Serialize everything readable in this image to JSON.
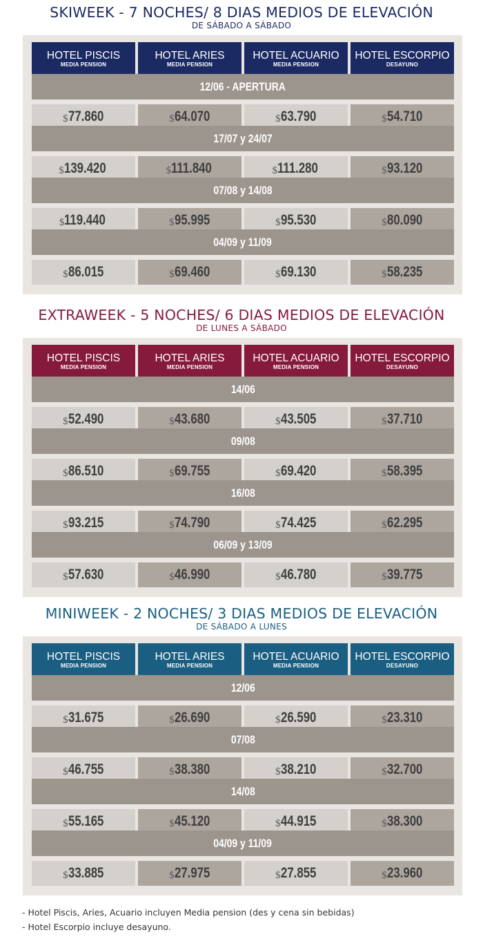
{
  "colors": {
    "skiweek": "#1c2a63",
    "extraweek": "#861a3d",
    "miniweek": "#1a5e82",
    "date_bar": "#9b958d",
    "cell_light": "#d4d0cb",
    "cell_dark": "#aca69f",
    "panel_bg": "#e9e6e2"
  },
  "sections": [
    {
      "id": "skiweek",
      "title": "SKIWEEK - 7 NOCHES/ 8 DIAS MEDIOS DE ELEVACIÓN",
      "subtitle": "DE SÁBADO A SÁBADO",
      "hotels": [
        {
          "name": "HOTEL PISCIS",
          "plan": "MEDIA PENSION"
        },
        {
          "name": "HOTEL ARIES",
          "plan": "MEDIA PENSION"
        },
        {
          "name": "HOTEL ACUARIO",
          "plan": "MEDIA PENSION"
        },
        {
          "name": "HOTEL ESCORPIO",
          "plan": "DESAYUNO"
        }
      ],
      "periods": [
        {
          "date": "12/06 - APERTURA",
          "prices": [
            "77.860",
            "64.070",
            "63.790",
            "54.710"
          ]
        },
        {
          "date": "17/07 y 24/07",
          "prices": [
            "139.420",
            "111.840",
            "111.280",
            "93.120"
          ]
        },
        {
          "date": "07/08 y 14/08",
          "prices": [
            "119.440",
            "95.995",
            "95.530",
            "80.090"
          ]
        },
        {
          "date": "04/09 y 11/09",
          "prices": [
            "86.015",
            "69.460",
            "69.130",
            "58.235"
          ]
        }
      ]
    },
    {
      "id": "extraweek",
      "title": "EXTRAWEEK - 5 NOCHES/ 6 DIAS MEDIOS DE ELEVACIÓN",
      "subtitle": "DE LUNES A SÁBADO",
      "hotels": [
        {
          "name": "HOTEL PISCIS",
          "plan": "MEDIA PENSION"
        },
        {
          "name": "HOTEL ARIES",
          "plan": "MEDIA PENSION"
        },
        {
          "name": "HOTEL ACUARIO",
          "plan": "MEDIA PENSION"
        },
        {
          "name": "HOTEL ESCORPIO",
          "plan": "DESAYUNO"
        }
      ],
      "periods": [
        {
          "date": "14/06",
          "prices": [
            "52.490",
            "43.680",
            "43.505",
            "37.710"
          ]
        },
        {
          "date": "09/08",
          "prices": [
            "86.510",
            "69.755",
            "69.420",
            "58.395"
          ]
        },
        {
          "date": "16/08",
          "prices": [
            "93.215",
            "74.790",
            "74.425",
            "62.295"
          ]
        },
        {
          "date": "06/09 y 13/09",
          "prices": [
            "57.630",
            "46.990",
            "46.780",
            "39.775"
          ]
        }
      ]
    },
    {
      "id": "miniweek",
      "title": "MINIWEEK - 2 NOCHES/ 3 DIAS MEDIOS DE ELEVACIÓN",
      "subtitle": "DE SÁBADO A LUNES",
      "hotels": [
        {
          "name": "HOTEL PISCIS",
          "plan": "MEDIA PENSION"
        },
        {
          "name": "HOTEL ARIES",
          "plan": "MEDIA PENSION"
        },
        {
          "name": "HOTEL ACUARIO",
          "plan": "MEDIA PENSION"
        },
        {
          "name": "HOTEL ESCORPIO",
          "plan": "DESAYUNO"
        }
      ],
      "periods": [
        {
          "date": "12/06",
          "prices": [
            "31.675",
            "26.690",
            "26.590",
            "23.310"
          ]
        },
        {
          "date": "07/08",
          "prices": [
            "46.755",
            "38.380",
            "38.210",
            "32.700"
          ]
        },
        {
          "date": "14/08",
          "prices": [
            "55.165",
            "45.120",
            "44.915",
            "38.300"
          ]
        },
        {
          "date": "04/09 y 11/09",
          "prices": [
            "33.885",
            "27.975",
            "27.855",
            "23.960"
          ]
        }
      ]
    }
  ],
  "currency_symbol": "$",
  "footer": [
    "- Hotel Piscis, Aries, Acuario incluyen Media pension (des y cena sin bebidas)",
    "- Hotel Escorpio incluye desayuno."
  ]
}
